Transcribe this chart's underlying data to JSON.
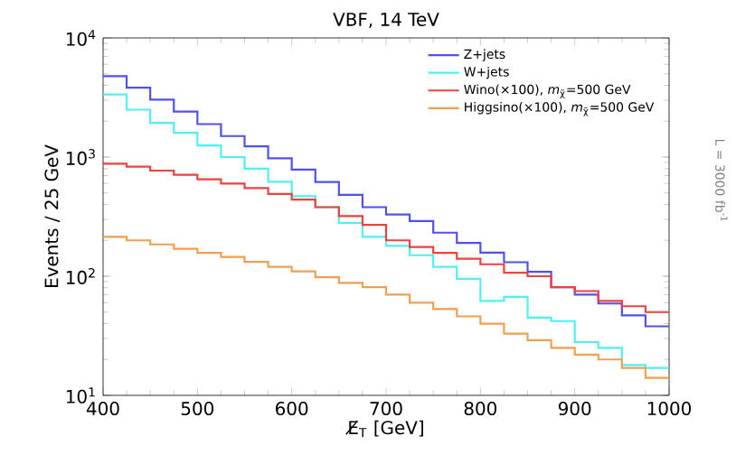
{
  "chart_data": {
    "type": "histogram",
    "title": "VBF, 14 TeV",
    "xlabel": "E̸$_{T}$ [GeV]",
    "ylabel": "Events / 25 GeV",
    "annotations": [
      "L = 3000 fb$^{-1}$"
    ],
    "bins": [
      400,
      425,
      450,
      475,
      500,
      525,
      550,
      575,
      600,
      625,
      650,
      675,
      700,
      725,
      750,
      775,
      800,
      825,
      850,
      875,
      900,
      925,
      950,
      975,
      1000
    ],
    "series": [
      {
        "name": "Z+jets",
        "color": "#5050f0",
        "values": [
          4780,
          3820,
          3030,
          2410,
          1890,
          1500,
          1230,
          977,
          785,
          617,
          482,
          380,
          330,
          290,
          232,
          190,
          158,
          131,
          109,
          81,
          70,
          59,
          47,
          38
        ]
      },
      {
        "name": "W+jets",
        "color": "#50f0f0",
        "values": [
          3360,
          2500,
          1940,
          1600,
          1250,
          1000,
          800,
          620,
          470,
          380,
          280,
          214,
          180,
          150,
          120,
          95,
          62,
          67,
          45,
          42,
          28,
          25,
          18,
          17
        ]
      },
      {
        "name": "Wino(×100), *m*$_{χ̃}$=500 GeV",
        "color": "#f04040",
        "values": [
          880,
          830,
          770,
          710,
          650,
          600,
          550,
          490,
          440,
          380,
          320,
          270,
          200,
          176,
          157,
          140,
          126,
          107,
          100,
          81,
          75,
          62,
          56,
          50
        ]
      },
      {
        "name": "Higgsino(×100), *m*$_{χ̃}$=500 GeV",
        "color": "#f0a050",
        "values": [
          214,
          200,
          185,
          170,
          157,
          145,
          132,
          120,
          110,
          98,
          88,
          81,
          70,
          60,
          53,
          46,
          40,
          33,
          29,
          25,
          22,
          20,
          17,
          14
        ]
      }
    ],
    "xlim": [
      400,
      1000
    ],
    "xticks": [
      400,
      500,
      600,
      700,
      800,
      900,
      1000
    ],
    "ylim": [
      10,
      10000
    ],
    "log": "y",
    "yticks": [
      {
        "value": 10,
        "label": "10$^{1}$"
      },
      {
        "value": 100,
        "label": "10$^{2}$"
      },
      {
        "value": 1000,
        "label": "10$^{3}$"
      },
      {
        "value": 10000,
        "label": "10$^{4}$"
      }
    ],
    "legend": "top right",
    "grid": false
  }
}
